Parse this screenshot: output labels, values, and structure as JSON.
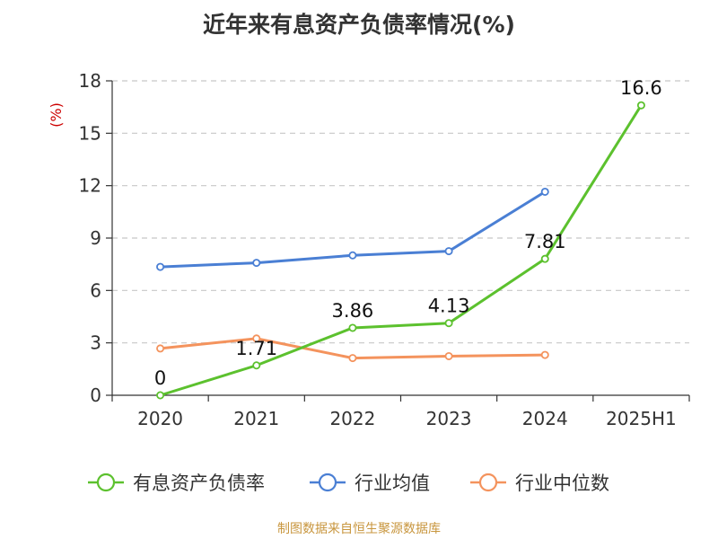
{
  "chart_data": {
    "type": "line",
    "title": "近年来有息资产负债率情况(%)",
    "ylabel": "(%)",
    "xlabel": "",
    "categories": [
      "2020",
      "2021",
      "2022",
      "2023",
      "2024",
      "2025H1"
    ],
    "ylim": [
      0,
      18
    ],
    "yticks": [
      0,
      3,
      6,
      9,
      12,
      15,
      18
    ],
    "grid": true,
    "legend_position": "bottom",
    "series": [
      {
        "name": "有息资产负债率",
        "color": "#5cc12e",
        "values": [
          0,
          1.71,
          3.86,
          4.13,
          7.81,
          16.6
        ],
        "labels": [
          "0",
          "1.71",
          "3.86",
          "4.13",
          "7.81",
          "16.6"
        ]
      },
      {
        "name": "行业均值",
        "color": "#4a7fd4",
        "values": [
          7.35,
          7.58,
          8.01,
          8.25,
          11.65,
          null
        ]
      },
      {
        "name": "行业中位数",
        "color": "#f4935d",
        "values": [
          2.68,
          3.25,
          2.13,
          2.24,
          2.31,
          null
        ]
      }
    ]
  },
  "footer": {
    "source": "制图数据来自恒生聚源数据库"
  }
}
